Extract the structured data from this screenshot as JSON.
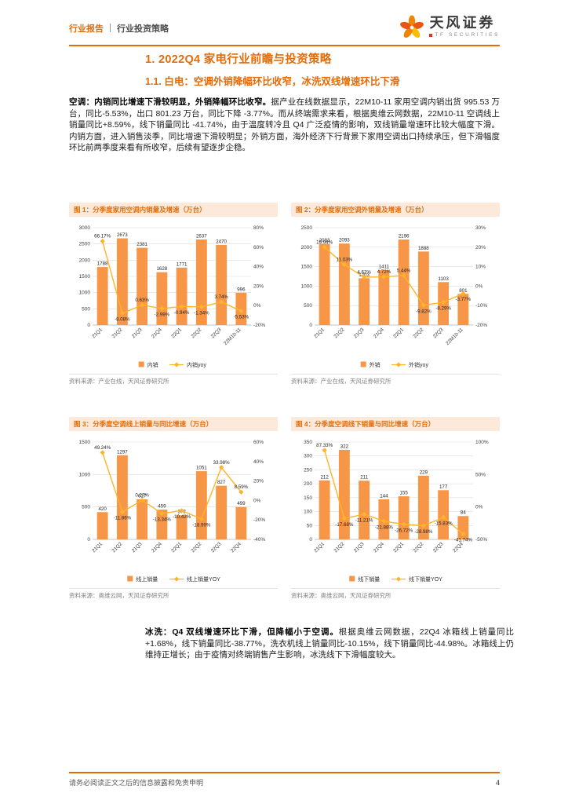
{
  "header": {
    "doc_type": "行业报告",
    "doc_subtype": "行业投资策略",
    "brand_name": "天风证券",
    "brand_sub": "TF SECURITIES"
  },
  "icons": {
    "brand_mark": "flower-pinwheel",
    "brand_bullet": "square"
  },
  "section": {
    "h1": "1. 2022Q4 家电行业前瞻与投资策略",
    "h2": "1.1. 白电：空调外销降幅环比收窄，冰洗双线增速环比下滑"
  },
  "paragraphs": {
    "p1_bold": "空调：内销同比增速下滑较明显，外销降幅环比收窄。",
    "p1_rest": "据产业在线数据显示，22M10-11 家用空调内销出货 995.53 万台，同比-5.53%，出口 801.23 万台，同比下降 -3.77%。而从终端需求来看，根据奥维云网数据，22M10-11 空调线上销量同比+8.59%，线下销量同比 -41.74%，由于温度转冷且 Q4 广泛疫情的影响，双线销量增速环比较大幅度下滑。内销方面，进入销售淡季，同比增速下滑较明显；外销方面，海外经济下行背景下家用空调出口持续承压，但下滑幅度环比前两季度来看有所收窄，后续有望逐步企稳。",
    "p2_bold": "冰洗：Q4 双线增速环比下滑，但降幅小于空调。",
    "p2_rest": "根据奥维云网数据，22Q4 冰箱线上销量同比+1.68%，线下销量同比-38.77%，洗衣机线上销量同比-10.15%，线下销量同比-44.98%。冰箱线上仍维持正增长；由于疫情对终端销售产生影响，冰洗线下下滑幅度较大。"
  },
  "footer": {
    "disclaimer": "请务必阅读正文之后的信息披露和免责申明",
    "page_number": "4"
  },
  "colors": {
    "accent": "#E36C09",
    "bar": "#F79646",
    "line": "#FFB428",
    "title_bg": "#FDE9D9"
  },
  "chart_data": [
    {
      "type": "bar",
      "title": "图 1：分季度家用空调内销量及增速（万台）",
      "categories": [
        "21Q1",
        "21Q2",
        "21Q3",
        "21Q4",
        "22Q1",
        "22Q2",
        "22Q3",
        "22M10-11"
      ],
      "bar_series": {
        "name": "内销",
        "values": [
          1788,
          2673,
          2381,
          1628,
          1771,
          2637,
          2470,
          996
        ]
      },
      "line_series": {
        "name": "内销yoy",
        "values_pct": [
          66.17,
          -8.08,
          0.63,
          -2.99,
          -0.94,
          -1.34,
          3.74,
          -5.53
        ]
      },
      "left_axis": {
        "min": 0,
        "max": 3000,
        "step": 500
      },
      "right_axis": {
        "min": -20,
        "max": 80,
        "step": 20
      },
      "grid": true,
      "legend_position": "bottom",
      "source": "资料来源：产业在线，天风证券研究所"
    },
    {
      "type": "bar",
      "title": "图 2：分季度家用空调外销量及增速（万台）",
      "categories": [
        "21Q1",
        "21Q2",
        "21Q3",
        "21Q4",
        "22Q1",
        "22Q2",
        "22Q3",
        "22M10-11"
      ],
      "bar_series": {
        "name": "外销",
        "values": [
          2083,
          2093,
          1203,
          1411,
          2196,
          1888,
          1103,
          801
        ]
      },
      "line_series": {
        "name": "外销yoy",
        "values_pct": [
          19.94,
          11.03,
          4.62,
          4.72,
          5.44,
          -9.82,
          -8.29,
          -3.77
        ]
      },
      "left_axis": {
        "min": 0,
        "max": 2500,
        "step": 500
      },
      "right_axis": {
        "min": -20,
        "max": 30,
        "step": 10
      },
      "grid": true,
      "legend_position": "bottom",
      "source": "资料来源：产业在线，天风证券研究所"
    },
    {
      "type": "bar",
      "title": "图 3：分季度空调线上销量与同比增速（万台）",
      "categories": [
        "21Q1",
        "21Q2",
        "21Q3",
        "21Q4",
        "22Q1",
        "22Q2",
        "22Q3",
        "22Q4"
      ],
      "bar_series": {
        "name": "线上销量",
        "values": [
          420,
          1297,
          617,
          459,
          373,
          1051,
          827,
          499
        ]
      },
      "line_series": {
        "name": "线上销量YOY",
        "values_pct": [
          49.24,
          -11.86,
          0.27,
          -13.34,
          -10.42,
          -18.99,
          33.98,
          8.59
        ]
      },
      "left_axis": {
        "min": 0,
        "max": 1500,
        "step": 500
      },
      "right_axis": {
        "min": -40,
        "max": 60,
        "step": 20
      },
      "grid": true,
      "legend_position": "bottom",
      "source": "资料来源：奥维云网，天风证券研究所"
    },
    {
      "type": "bar",
      "title": "图 4：分季度空调线下销量与同比增速（万台）",
      "categories": [
        "21Q1",
        "21Q2",
        "21Q3",
        "21Q4",
        "22Q1",
        "22Q2",
        "22Q3",
        "22Q4"
      ],
      "bar_series": {
        "name": "线下销量",
        "values": [
          212,
          322,
          211,
          144,
          155,
          229,
          177,
          84
        ]
      },
      "line_series": {
        "name": "线下销量YOY",
        "values_pct": [
          87.33,
          -17.68,
          -11.21,
          -21.88,
          -26.72,
          -28.98,
          -15.83,
          -41.74
        ]
      },
      "left_axis": {
        "min": 0,
        "max": 350,
        "step": 50
      },
      "right_axis": {
        "min": -50,
        "max": 100,
        "step": 50
      },
      "grid": true,
      "legend_position": "bottom",
      "source": "资料来源：奥维云网，天风证券研究所"
    }
  ]
}
